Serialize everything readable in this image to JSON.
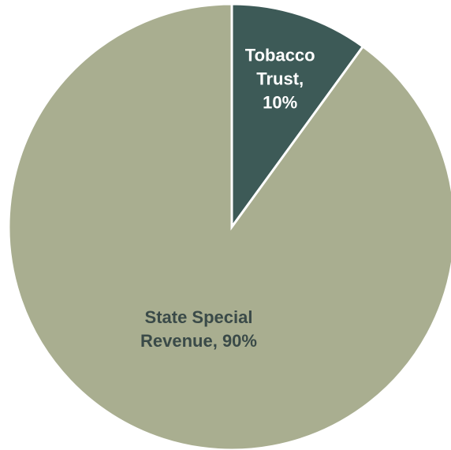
{
  "chart_data": {
    "type": "pie",
    "title": "",
    "legend": "none",
    "slices": [
      {
        "label": "Tobacco Trust",
        "value": 10,
        "label_lines": [
          "Tobacco",
          "Trust,",
          "10%"
        ],
        "color": "#3d5a57",
        "text_color": "#ffffff"
      },
      {
        "label": "State Special Revenue",
        "value": 90,
        "label_lines": [
          "State Special",
          "Revenue, 90%"
        ],
        "color": "#a9ae90",
        "text_color": "#3a4a48"
      }
    ]
  }
}
